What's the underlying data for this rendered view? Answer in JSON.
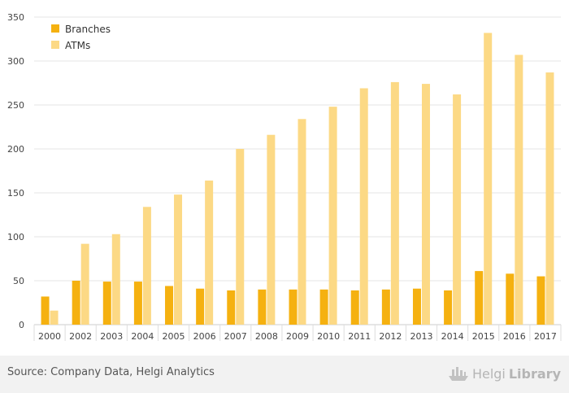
{
  "chart_data": {
    "type": "bar",
    "categories": [
      "2000",
      "2002",
      "2003",
      "2004",
      "2005",
      "2006",
      "2007",
      "2008",
      "2009",
      "2010",
      "2011",
      "2012",
      "2013",
      "2014",
      "2015",
      "2016",
      "2017"
    ],
    "series": [
      {
        "name": "Branches",
        "color": "#f5b110",
        "values": [
          32,
          50,
          49,
          49,
          44,
          41,
          39,
          40,
          40,
          40,
          39,
          40,
          41,
          39,
          61,
          58,
          55
        ]
      },
      {
        "name": "ATMs",
        "color": "#fcd985",
        "values": [
          16,
          92,
          103,
          134,
          148,
          164,
          200,
          216,
          234,
          248,
          269,
          276,
          274,
          262,
          332,
          307,
          287
        ]
      }
    ],
    "yticks": [
      0,
      50,
      100,
      150,
      200,
      250,
      300,
      350
    ],
    "ylim": [
      0,
      350
    ],
    "grid": true,
    "legend_position": "top-left"
  },
  "footer": {
    "source": "Source: Company Data, Helgi Analytics",
    "brand_light": "Helgi",
    "brand_bold": "Library"
  }
}
